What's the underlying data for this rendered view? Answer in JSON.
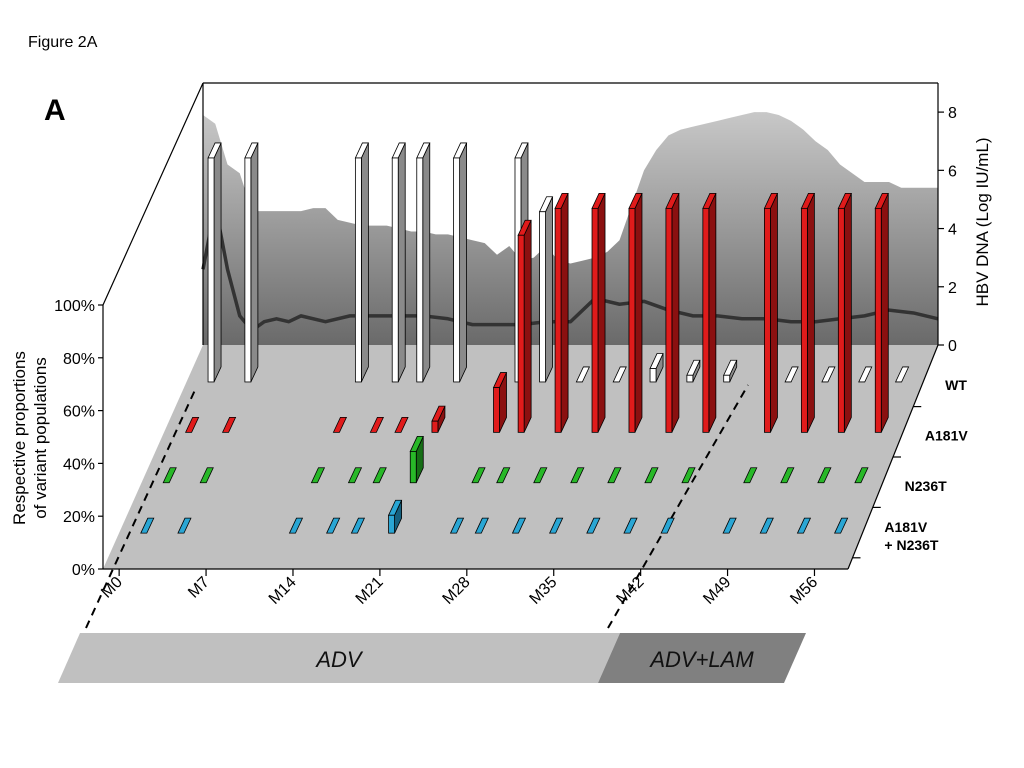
{
  "figure_label": "Figure 2A",
  "panel_label": "A",
  "chart_data": {
    "type": "3d-bar-area",
    "y_left_label_line1": "Respective proportions",
    "y_left_label_line2": "of variant populations",
    "y_left_ticks": [
      "0%",
      "20%",
      "40%",
      "60%",
      "80%",
      "100%"
    ],
    "y_right_label": "HBV DNA (Log IU/mL)",
    "y_right_ticks": [
      "0",
      "2",
      "4",
      "6",
      "8"
    ],
    "y_right_range": [
      0,
      9
    ],
    "x_ticks": [
      "M0",
      "M7",
      "M14",
      "M21",
      "M28",
      "M35",
      "M42",
      "M49",
      "M56"
    ],
    "x_tick_months": [
      0,
      7,
      14,
      21,
      28,
      35,
      42,
      49,
      56
    ],
    "x_range": [
      0,
      60
    ],
    "depth_labels": [
      "WT",
      "A181V",
      "N236T",
      "A181V\n+ N236T"
    ],
    "depth_label_lines": [
      [
        "WT"
      ],
      [
        "A181V"
      ],
      [
        "N236T"
      ],
      [
        "A181V",
        "+ N236T"
      ]
    ],
    "therapy_phases": [
      {
        "label": "ADV",
        "start": 0,
        "end": 42
      },
      {
        "label": "ADV+LAM",
        "start": 42,
        "end": 58
      }
    ],
    "series_colors": {
      "WT": "#ffffff",
      "A181V": "#e01b1b",
      "N236T": "#28b828",
      "A181V + N236T": "#2aa6d4"
    },
    "series": [
      {
        "name": "WT",
        "x": [
          2,
          5,
          14,
          17,
          19,
          22,
          27,
          29,
          32,
          35,
          38,
          41,
          44,
          49,
          52,
          55,
          58
        ],
        "values": [
          100,
          100,
          100,
          100,
          100,
          100,
          100,
          76,
          0,
          0,
          6,
          3,
          3,
          0,
          0,
          0,
          0
        ]
      },
      {
        "name": "A181V",
        "x": [
          2,
          5,
          14,
          17,
          19,
          22,
          27,
          29,
          32,
          35,
          38,
          41,
          44,
          49,
          52,
          55,
          58
        ],
        "values": [
          0,
          0,
          0,
          0,
          0,
          5,
          20,
          88,
          100,
          100,
          100,
          100,
          100,
          100,
          100,
          100,
          100
        ]
      },
      {
        "name": "N236T",
        "x": [
          2,
          5,
          14,
          17,
          19,
          22,
          27,
          29,
          32,
          35,
          38,
          41,
          44,
          49,
          52,
          55,
          58
        ],
        "values": [
          0,
          0,
          0,
          0,
          0,
          14,
          0,
          0,
          0,
          0,
          0,
          0,
          0,
          0,
          0,
          0,
          0
        ]
      },
      {
        "name": "A181V + N236T",
        "x": [
          2,
          5,
          14,
          17,
          19,
          22,
          27,
          29,
          32,
          35,
          38,
          41,
          44,
          49,
          52,
          55,
          58
        ],
        "values": [
          0,
          0,
          0,
          0,
          0,
          8,
          0,
          0,
          0,
          0,
          0,
          0,
          0,
          0,
          0,
          0,
          0
        ]
      }
    ],
    "hbv_dna_area": {
      "x": [
        0,
        1,
        2,
        3,
        4,
        5,
        6,
        7,
        8,
        9,
        10,
        11,
        12,
        13,
        14,
        15,
        16,
        17,
        18,
        19,
        20,
        21,
        22,
        23,
        24,
        25,
        26,
        27,
        28,
        29,
        30,
        31,
        32,
        33,
        34,
        35,
        36,
        37,
        38,
        39,
        40,
        41,
        42,
        43,
        44,
        45,
        46,
        47,
        48,
        49,
        50,
        51,
        52,
        53,
        54,
        55,
        56,
        57,
        58,
        59,
        60
      ],
      "values": [
        7.9,
        7.6,
        6.2,
        5.9,
        4.6,
        4.6,
        4.6,
        4.6,
        4.6,
        4.7,
        4.7,
        4.3,
        4.2,
        4.1,
        4.1,
        4.1,
        4.0,
        3.9,
        3.9,
        3.8,
        3.8,
        3.7,
        3.6,
        3.5,
        3.1,
        3.4,
        2.9,
        3.0,
        3.4,
        2.9,
        2.8,
        2.9,
        3.0,
        3.2,
        3.6,
        4.8,
        6.0,
        6.7,
        7.2,
        7.4,
        7.5,
        7.6,
        7.7,
        7.8,
        7.9,
        8.0,
        8.0,
        7.9,
        7.7,
        7.4,
        7.0,
        6.7,
        6.2,
        5.9,
        5.6,
        5.6,
        5.6,
        5.4,
        5.4,
        5.4,
        5.4
      ]
    },
    "alt_line": {
      "x": [
        0,
        1,
        2,
        3,
        4,
        5,
        6,
        7,
        8,
        10,
        12,
        14,
        16,
        18,
        20,
        22,
        24,
        26,
        28,
        30,
        32,
        34,
        36,
        38,
        40,
        42,
        44,
        46,
        48,
        50,
        52,
        54,
        56,
        58,
        60
      ],
      "values": [
        2.6,
        4.8,
        2.6,
        1.0,
        0.5,
        0.8,
        0.9,
        0.8,
        1.0,
        0.8,
        1.0,
        1.0,
        1.0,
        1.0,
        0.9,
        0.7,
        0.7,
        0.7,
        0.8,
        0.8,
        1.6,
        1.4,
        1.5,
        1.2,
        1.0,
        1.0,
        0.9,
        0.9,
        0.8,
        0.8,
        0.9,
        1.0,
        1.2,
        1.1,
        0.9
      ]
    }
  }
}
